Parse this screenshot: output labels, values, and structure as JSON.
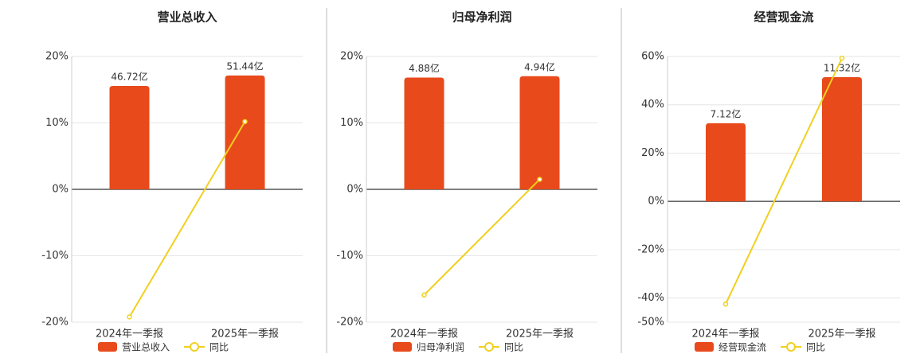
{
  "chart_data": [
    {
      "type": "bar_line",
      "title": "营业总收入",
      "categories": [
        "2024年一季报",
        "2025年一季报"
      ],
      "series": [
        {
          "name": "营业总收入",
          "type": "bar",
          "axis": "y2",
          "color": "#e84a1b",
          "values": [
            46.72,
            51.44
          ],
          "value_labels": [
            "46.72亿",
            "51.44亿"
          ]
        },
        {
          "name": "同比",
          "type": "line",
          "color": "#f0d020",
          "values": [
            -19.2,
            10.2
          ]
        }
      ],
      "ylim": [
        -20,
        20
      ],
      "yticks": [
        {
          "value": 20,
          "label": "20%"
        },
        {
          "value": 10,
          "label": "10%"
        },
        {
          "value": 0,
          "label": "0%"
        },
        {
          "value": -10,
          "label": "-10%"
        },
        {
          "value": -20,
          "label": "-20%"
        }
      ],
      "y2lim": [
        -60,
        60
      ],
      "grid": true
    },
    {
      "type": "bar_line",
      "title": "归母净利润",
      "categories": [
        "2024年一季报",
        "2025年一季报"
      ],
      "series": [
        {
          "name": "归母净利润",
          "type": "bar",
          "axis": "y2",
          "color": "#e84a1b",
          "values": [
            4.88,
            4.94
          ],
          "value_labels": [
            "4.88亿",
            "4.94亿"
          ]
        },
        {
          "name": "同比",
          "type": "line",
          "color": "#f0d020",
          "values": [
            -15.9,
            1.5
          ]
        }
      ],
      "ylim": [
        -20,
        20
      ],
      "yticks": [
        {
          "value": 20,
          "label": "20%"
        },
        {
          "value": 10,
          "label": "10%"
        },
        {
          "value": 0,
          "label": "0%"
        },
        {
          "value": -10,
          "label": "-10%"
        },
        {
          "value": -20,
          "label": "-20%"
        }
      ],
      "y2lim": [
        -5.8,
        5.8
      ],
      "grid": true
    },
    {
      "type": "bar_line",
      "title": "经营现金流",
      "categories": [
        "2024年一季报",
        "2025年一季报"
      ],
      "series": [
        {
          "name": "经营现金流",
          "type": "bar",
          "axis": "y2",
          "color": "#e84a1b",
          "values": [
            7.12,
            11.32
          ],
          "value_labels": [
            "7.12亿",
            "11.32亿"
          ]
        },
        {
          "name": "同比",
          "type": "line",
          "color": "#f0d020",
          "values": [
            -42.5,
            59.3
          ]
        }
      ],
      "ylim": [
        -50,
        60
      ],
      "yticks": [
        {
          "value": 60,
          "label": "60%"
        },
        {
          "value": 40,
          "label": "40%"
        },
        {
          "value": 20,
          "label": "20%"
        },
        {
          "value": 0,
          "label": "0%"
        },
        {
          "value": -20,
          "label": "-20%"
        },
        {
          "value": -40,
          "label": "-40%"
        },
        {
          "value": -50,
          "label": "-50%"
        }
      ],
      "y2lim": [
        -11,
        13.2
      ],
      "grid": true
    }
  ]
}
